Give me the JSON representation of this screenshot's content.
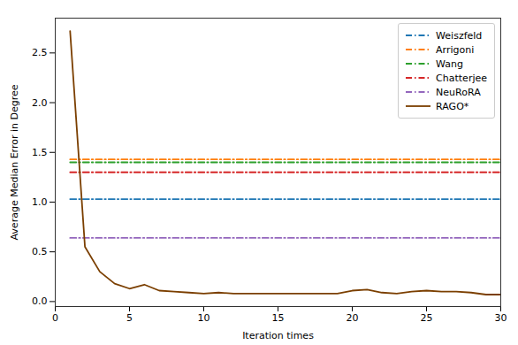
{
  "chart_data": {
    "type": "line",
    "xlabel": "Iteration times",
    "ylabel": "Average Median Error in Degree",
    "xlim": [
      0,
      30
    ],
    "ylim": [
      -0.05,
      2.85
    ],
    "xticks": [
      0,
      5,
      10,
      15,
      20,
      25,
      30
    ],
    "yticks": [
      {
        "value": 0.0,
        "label": "0.0"
      },
      0.5,
      {
        "value": 1.0,
        "label": "1.0"
      },
      1.5,
      {
        "value": 2.0,
        "label": "2.0"
      },
      2.5
    ],
    "grid": false,
    "legend": "upper right",
    "series": [
      {
        "name": "Weiszfeld",
        "color": "#1f77b4",
        "line_style": "dash-dot",
        "x": [
          1,
          30
        ],
        "values": [
          1.03,
          1.03
        ]
      },
      {
        "name": "Arrigoni",
        "color": "#ff7f0e",
        "line_style": "dash-dot",
        "x": [
          1,
          30
        ],
        "values": [
          1.43,
          1.43
        ]
      },
      {
        "name": "Wang",
        "color": "#2ca02c",
        "line_style": "dash-dot",
        "x": [
          1,
          30
        ],
        "values": [
          1.4,
          1.4
        ]
      },
      {
        "name": "Chatterjee",
        "color": "#d62728",
        "line_style": "dash-dot",
        "x": [
          1,
          30
        ],
        "values": [
          1.3,
          1.3
        ]
      },
      {
        "name": "NeuRoRA",
        "color": "#9467bd",
        "line_style": "dash-dot",
        "x": [
          1,
          30
        ],
        "values": [
          0.64,
          0.64
        ]
      },
      {
        "name": "RAGO*",
        "color": "#7B3F00",
        "line_style": "solid",
        "x": [
          1,
          2,
          3,
          4,
          5,
          6,
          7,
          8,
          9,
          10,
          11,
          12,
          13,
          14,
          15,
          16,
          17,
          18,
          19,
          20,
          21,
          22,
          23,
          24,
          25,
          26,
          27,
          28,
          29,
          30
        ],
        "values": [
          2.72,
          0.55,
          0.3,
          0.18,
          0.13,
          0.17,
          0.11,
          0.1,
          0.09,
          0.08,
          0.09,
          0.08,
          0.08,
          0.08,
          0.08,
          0.08,
          0.08,
          0.08,
          0.08,
          0.11,
          0.12,
          0.09,
          0.08,
          0.1,
          0.11,
          0.1,
          0.1,
          0.09,
          0.07,
          0.07
        ]
      }
    ]
  }
}
